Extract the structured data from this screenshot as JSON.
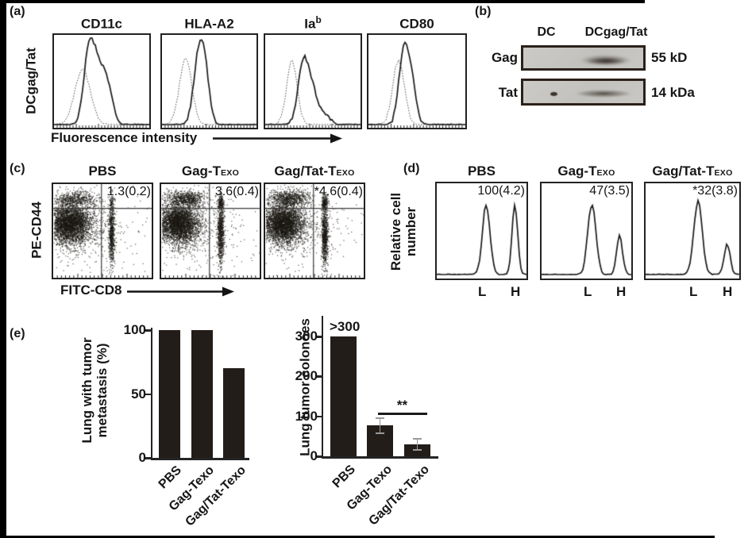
{
  "panels": {
    "a": {
      "label": "(a)",
      "y_label": "DCgag/Tat",
      "x_label": "Fluorescence intensity",
      "plots": [
        {
          "title": "CD11c",
          "sup": ""
        },
        {
          "title": "HLA-A2",
          "sup": ""
        },
        {
          "title": "Ia",
          "sup": "b"
        },
        {
          "title": "CD80",
          "sup": ""
        }
      ]
    },
    "b": {
      "label": "(b)",
      "lane1": "DC",
      "lane2": "DCgag/Tat",
      "rows": [
        {
          "protein": "Gag",
          "size": "55 kD"
        },
        {
          "protein": "Tat",
          "size": "14 kDa"
        }
      ]
    },
    "c": {
      "label": "(c)",
      "y_label": "PE-CD44",
      "x_label": "FITC-CD8",
      "plots": [
        {
          "title": "PBS",
          "sub": "",
          "value": "1.3(0.2)"
        },
        {
          "title": "Gag-T",
          "sub": "EXO",
          "value": "3.6(0.4)"
        },
        {
          "title": "Gag/Tat-T",
          "sub": "EXO",
          "value": "*4.6(0.4)"
        }
      ]
    },
    "d": {
      "label": "(d)",
      "y_label_lines": [
        "Relative cell",
        "number"
      ],
      "plots": [
        {
          "title": "PBS",
          "sub": "",
          "value": "100(4.2)",
          "low": "L",
          "high": "H"
        },
        {
          "title": "Gag-T",
          "sub": "EXO",
          "value": "47(3.5)",
          "low": "L",
          "high": "H"
        },
        {
          "title": "Gag/Tat-T",
          "sub": "EXO",
          "value": "*32(3.8)",
          "low": "L",
          "high": "H"
        }
      ]
    },
    "e": {
      "label": "(e)"
    }
  },
  "chart_data": [
    {
      "type": "bar",
      "title": "",
      "ylabel": "Lung with tumor metastasis (%)",
      "ylabel_lines": [
        "Lung with tumor",
        "metastasis (%)"
      ],
      "categories": [
        "PBS",
        "Gag-Texo",
        "Gag/Tat-Texo"
      ],
      "values": [
        100,
        100,
        70
      ],
      "errors": [
        0,
        0,
        0
      ],
      "yticks": [
        0,
        50,
        100
      ],
      "ylim": [
        0,
        100
      ],
      "bar_color": "#221d19"
    },
    {
      "type": "bar",
      "title": "",
      "ylabel": "Lung tumor colonoes",
      "ylabel_lines": [
        "Lung tumor colonoes"
      ],
      "categories": [
        "PBS",
        "Gag-Texo",
        "Gag/Tat-Texo"
      ],
      "values": [
        300,
        77,
        30
      ],
      "errors": [
        0,
        18,
        13
      ],
      "yticks": [
        0,
        100,
        200,
        300
      ],
      "ylim": [
        0,
        340
      ],
      "above_bar_label": {
        "bar": 0,
        "text": ">300"
      },
      "significance": {
        "label": "**",
        "bars": [
          1,
          2
        ]
      },
      "bar_color": "#221d19"
    }
  ],
  "flow": {
    "a": [
      {
        "dotted": [
          [
            0.3,
            0.08,
            0.7
          ]
        ],
        "solid": [
          [
            0.36,
            0.05,
            0.6
          ],
          [
            0.45,
            0.08,
            0.78
          ],
          [
            0.57,
            0.05,
            0.3
          ]
        ]
      },
      {
        "dotted": [
          [
            0.25,
            0.065,
            0.82
          ]
        ],
        "solid": [
          [
            0.39,
            0.055,
            0.86
          ],
          [
            0.46,
            0.045,
            0.48
          ]
        ]
      },
      {
        "dotted": [
          [
            0.28,
            0.055,
            0.8
          ]
        ],
        "solid": [
          [
            0.4,
            0.055,
            0.8
          ],
          [
            0.5,
            0.05,
            0.34
          ],
          [
            0.61,
            0.06,
            0.14
          ]
        ]
      },
      {
        "dotted": [
          [
            0.31,
            0.06,
            0.8
          ]
        ],
        "solid": [
          [
            0.36,
            0.05,
            0.82
          ],
          [
            0.44,
            0.05,
            0.52
          ]
        ]
      }
    ],
    "c": {
      "gate_x": 0.49,
      "gate_y": 0.26,
      "plots": [
        {
          "clusters": [
            [
              0.17,
              0.42,
              0.1,
              0.1,
              3000
            ],
            [
              0.22,
              0.44,
              0.16,
              0.16,
              800
            ],
            [
              0.22,
              0.16,
              0.11,
              0.045,
              520
            ],
            [
              0.59,
              0.52,
              0.016,
              0.17,
              700
            ],
            [
              0.59,
              0.2,
              0.015,
              0.035,
              60
            ],
            [
              0.5,
              0.5,
              0.3,
              0.28,
              200
            ]
          ]
        },
        {
          "clusters": [
            [
              0.17,
              0.42,
              0.1,
              0.1,
              3000
            ],
            [
              0.22,
              0.44,
              0.16,
              0.16,
              800
            ],
            [
              0.24,
              0.15,
              0.1,
              0.045,
              700
            ],
            [
              0.6,
              0.52,
              0.017,
              0.17,
              800
            ],
            [
              0.6,
              0.19,
              0.016,
              0.04,
              180
            ],
            [
              0.5,
              0.5,
              0.3,
              0.28,
              200
            ]
          ]
        },
        {
          "clusters": [
            [
              0.17,
              0.42,
              0.1,
              0.1,
              3000
            ],
            [
              0.22,
              0.44,
              0.16,
              0.16,
              800
            ],
            [
              0.24,
              0.15,
              0.1,
              0.045,
              740
            ],
            [
              0.6,
              0.52,
              0.017,
              0.17,
              800
            ],
            [
              0.6,
              0.19,
              0.016,
              0.04,
              200
            ],
            [
              0.5,
              0.5,
              0.3,
              0.28,
              200
            ]
          ]
        }
      ]
    },
    "d": [
      {
        "peaks": [
          [
            0.55,
            0.042,
            0.85
          ],
          [
            0.87,
            0.032,
            0.82
          ]
        ]
      },
      {
        "peaks": [
          [
            0.56,
            0.045,
            0.85
          ],
          [
            0.87,
            0.032,
            0.47
          ]
        ]
      },
      {
        "peaks": [
          [
            0.56,
            0.045,
            0.88
          ],
          [
            0.87,
            0.032,
            0.38
          ]
        ]
      }
    ]
  }
}
